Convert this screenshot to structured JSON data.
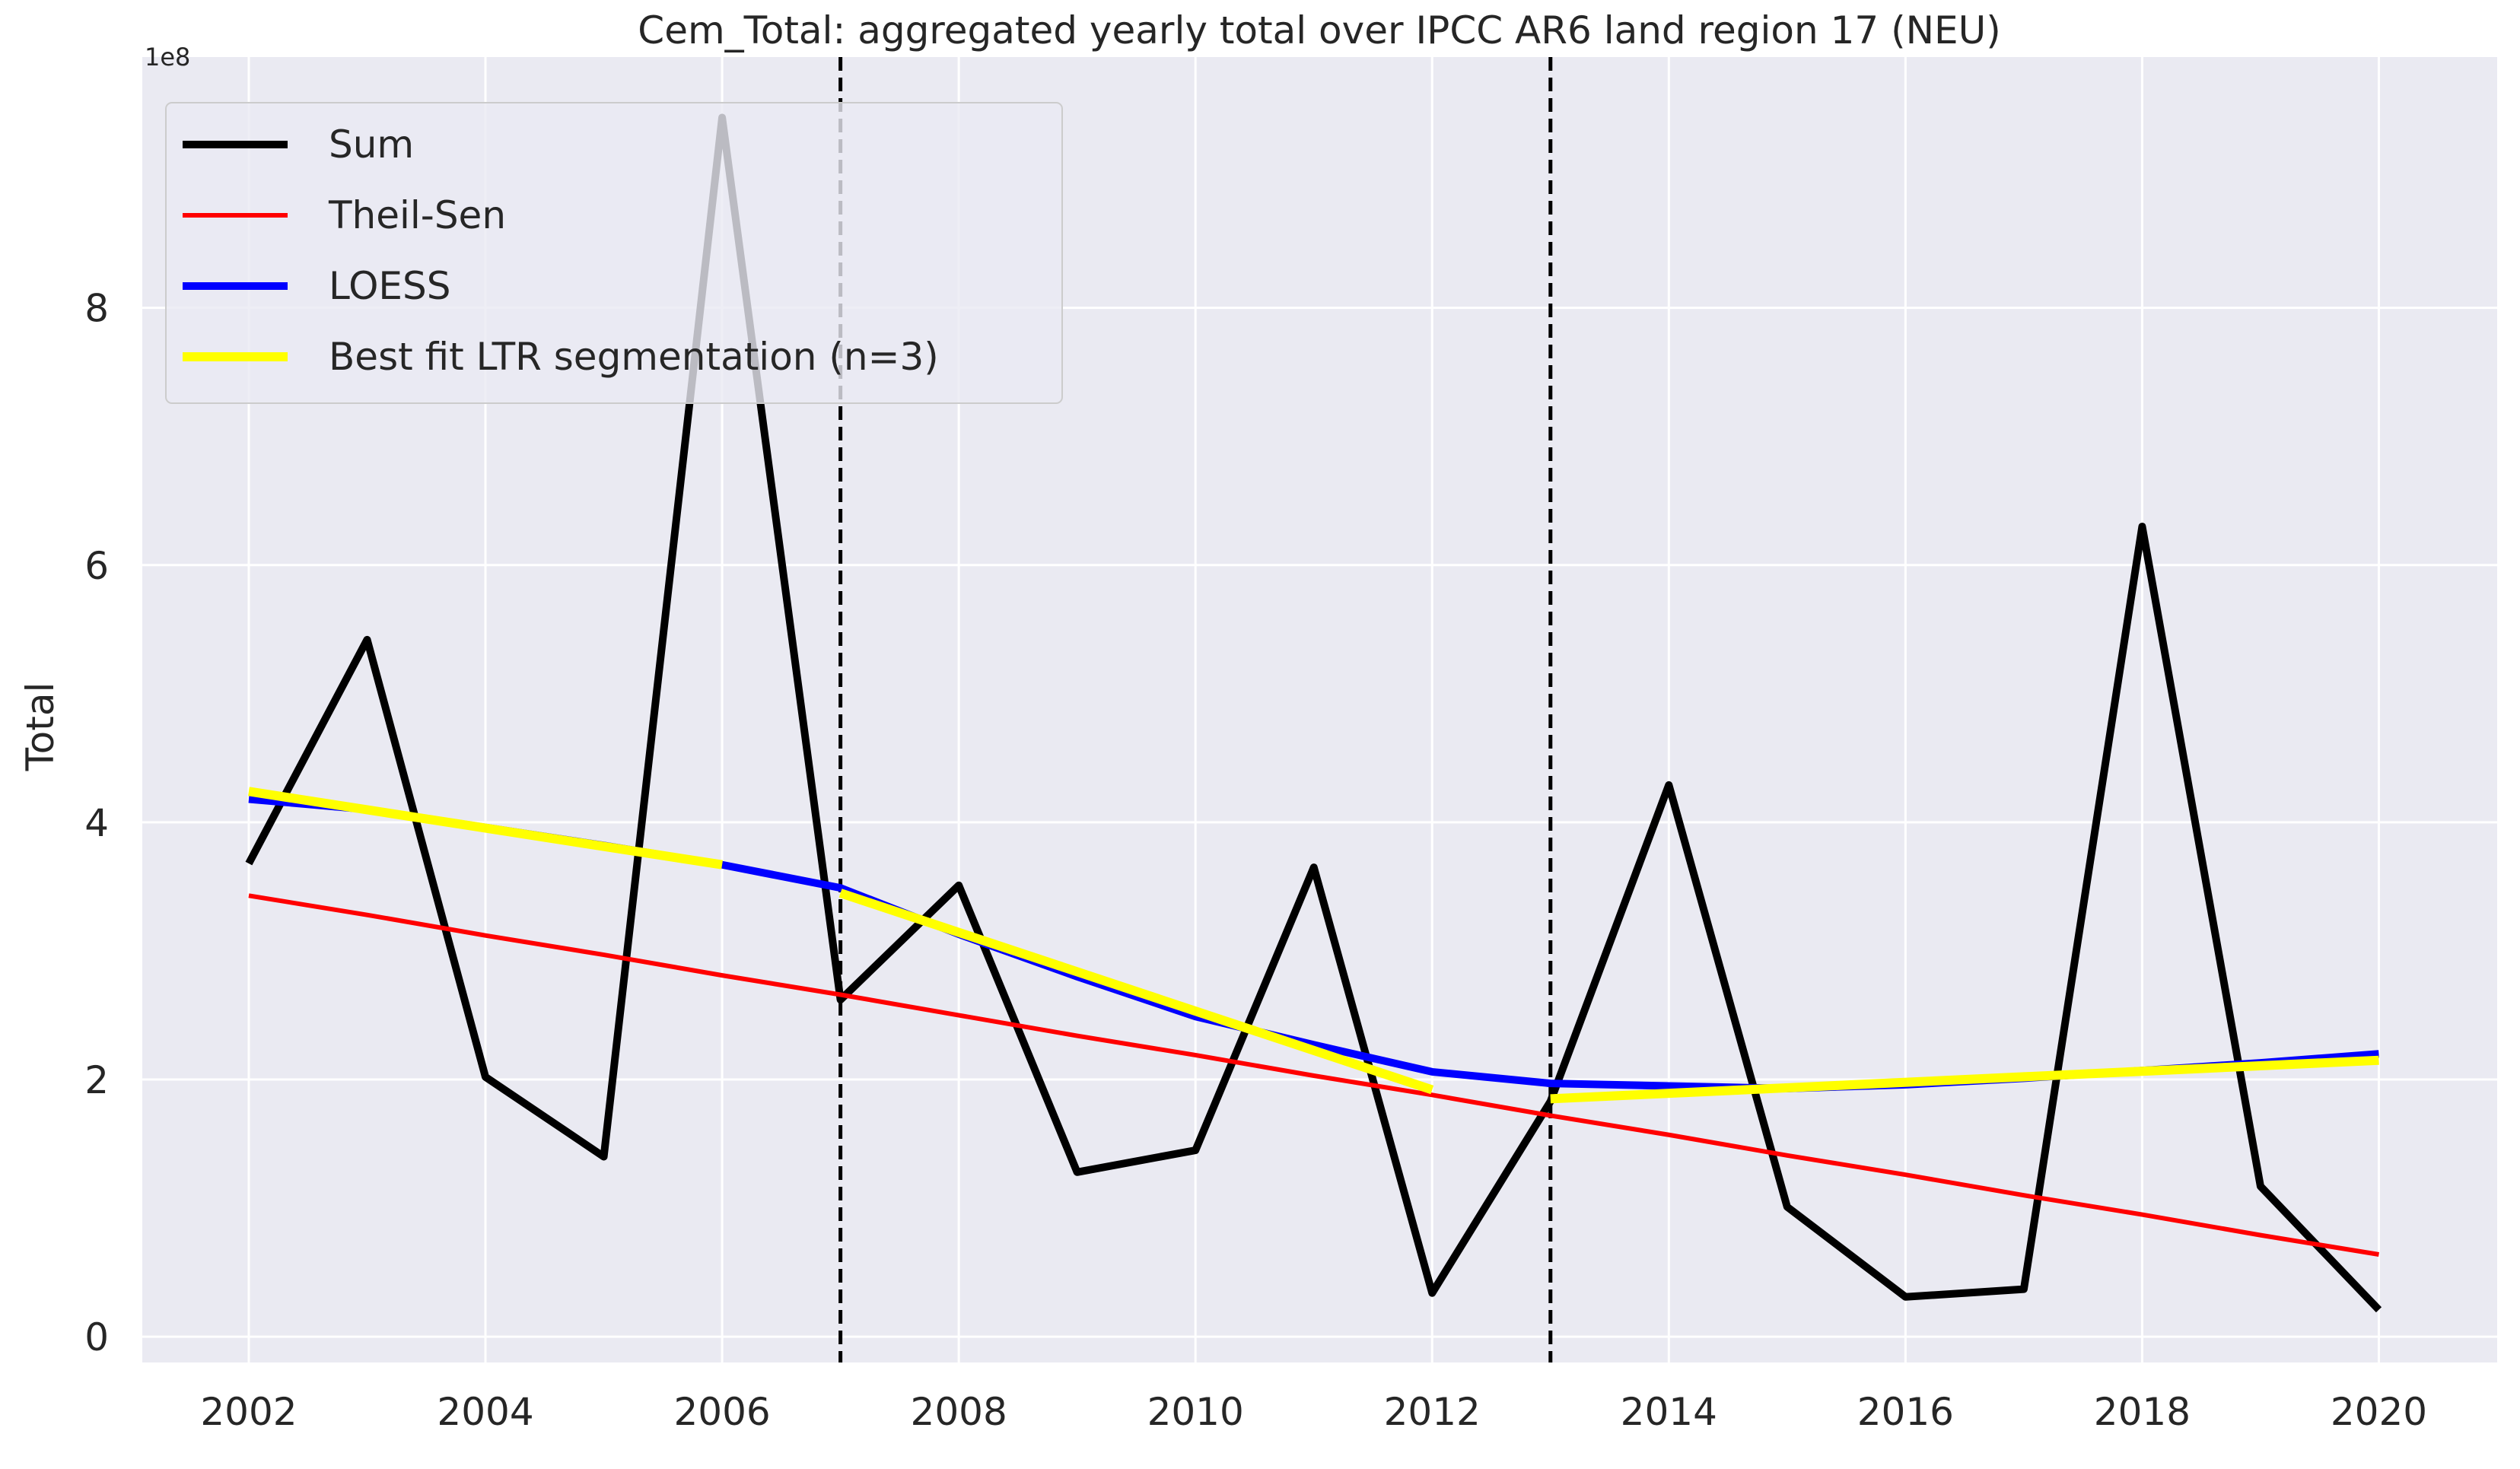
{
  "chart_data": {
    "type": "line",
    "title": "Cem_Total: aggregated yearly total over IPCC AR6 land region 17 (NEU)",
    "xlabel": "",
    "ylabel": "Total",
    "y_offset_label": "1e8",
    "x": [
      2002,
      2003,
      2004,
      2005,
      2006,
      2007,
      2008,
      2009,
      2010,
      2011,
      2012,
      2013,
      2014,
      2015,
      2016,
      2017,
      2018,
      2019,
      2020
    ],
    "xlim": [
      2001.1,
      2021.0
    ],
    "ylim": [
      -0.2,
      9.95
    ],
    "x_ticks": [
      2002,
      2004,
      2006,
      2008,
      2010,
      2012,
      2014,
      2016,
      2018,
      2020
    ],
    "x_tick_labels": [
      "2002",
      "2004",
      "2006",
      "2008",
      "2010",
      "2012",
      "2014",
      "2016",
      "2018",
      "2020"
    ],
    "y_ticks": [
      0,
      2,
      4,
      6,
      8
    ],
    "y_tick_labels": [
      "0",
      "2",
      "4",
      "6",
      "8"
    ],
    "grid": true,
    "legend_position": "top-left",
    "vertical_lines": [
      2007,
      2013
    ],
    "series": [
      {
        "name": "Sum",
        "color": "#000000",
        "kind": "line",
        "values": [
          3.68,
          5.42,
          2.02,
          1.4,
          9.48,
          2.62,
          3.51,
          1.28,
          1.45,
          3.65,
          0.34,
          1.83,
          4.29,
          1.01,
          0.31,
          0.37,
          6.3,
          1.17,
          0.21
        ]
      },
      {
        "name": "Theil-Sen",
        "color": "#ff0000",
        "kind": "line",
        "values": [
          3.43,
          3.28,
          3.12,
          2.97,
          2.81,
          2.66,
          2.5,
          2.34,
          2.19,
          2.03,
          1.88,
          1.72,
          1.57,
          1.41,
          1.26,
          1.1,
          0.95,
          0.79,
          0.64
        ]
      },
      {
        "name": "LOESS",
        "color": "#0000ff",
        "kind": "line",
        "values": [
          4.18,
          4.1,
          3.96,
          3.82,
          3.67,
          3.49,
          3.13,
          2.8,
          2.49,
          2.27,
          2.06,
          1.97,
          1.95,
          1.93,
          1.96,
          2.01,
          2.07,
          2.13,
          2.2
        ]
      },
      {
        "name": "Best fit LTR segmentation (n=3)",
        "color": "#ffff00",
        "kind": "segments",
        "segments": [
          {
            "x": [
              2002,
              2006
            ],
            "y": [
              4.24,
              3.67
            ]
          },
          {
            "x": [
              2007,
              2012
            ],
            "y": [
              3.45,
              1.92
            ]
          },
          {
            "x": [
              2013,
              2020
            ],
            "y": [
              1.85,
              2.15
            ]
          }
        ]
      }
    ]
  }
}
